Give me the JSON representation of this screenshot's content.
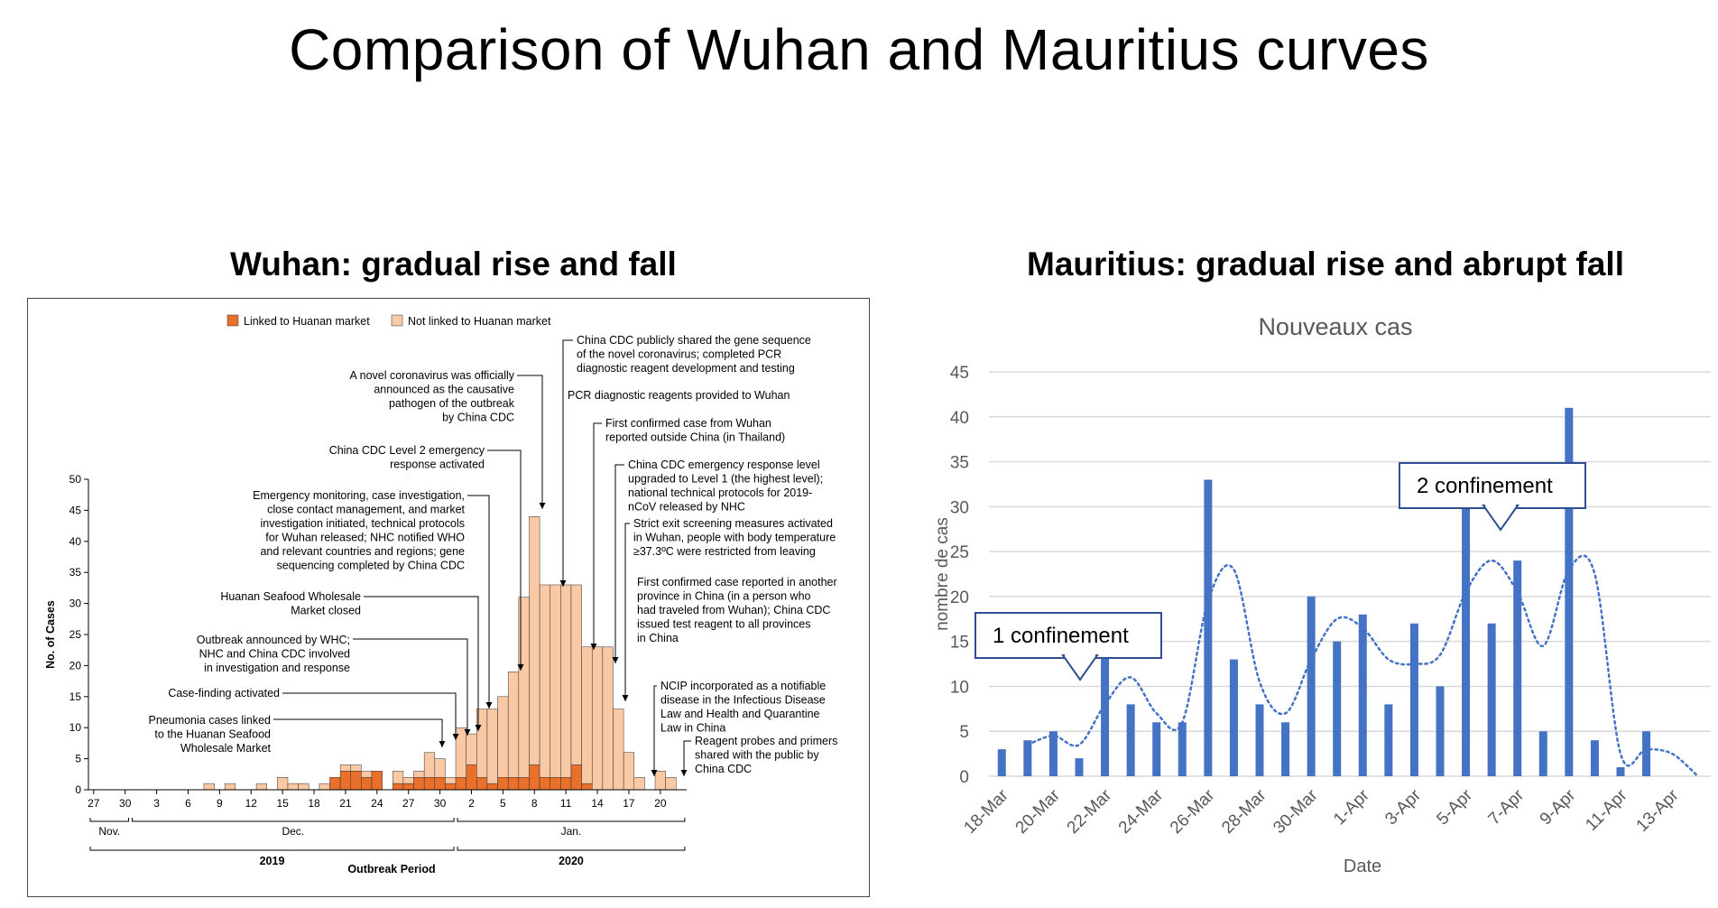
{
  "title": "Comparison of Wuhan and Mauritius curves",
  "panels": {
    "wuhan": {
      "title": "Wuhan: gradual rise and fall"
    },
    "mauritius": {
      "title": "Mauritius: gradual rise and abrupt fall"
    }
  },
  "colors": {
    "linked": "#e8702a",
    "not_linked": "#f9c8a5",
    "mauritius_bar": "#4472c4",
    "grid": "#d9d9d9",
    "callout_border": "#2f4f8f"
  },
  "chart_data": [
    {
      "type": "bar",
      "stacked": true,
      "legend": [
        "Linked to Huanan market",
        "Not linked to Huanan market"
      ],
      "legend_position": "top",
      "ylabel": "No. of Cases",
      "xlabel": "Outbreak Period",
      "ylim": [
        0,
        50
      ],
      "yticks": [
        0,
        5,
        10,
        15,
        20,
        25,
        30,
        35,
        40,
        45,
        50
      ],
      "xtick_labels": [
        "27",
        "30",
        "3",
        "6",
        "9",
        "12",
        "15",
        "18",
        "21",
        "24",
        "27",
        "30",
        "2",
        "5",
        "8",
        "11",
        "14",
        "17",
        "20"
      ],
      "month_labels": [
        "Nov.",
        "Dec.",
        "Jan."
      ],
      "year_labels": [
        "2019",
        "2020"
      ],
      "categories": [
        "Nov 27",
        "Nov 28",
        "Nov 29",
        "Nov 30",
        "Dec 1",
        "Dec 2",
        "Dec 3",
        "Dec 4",
        "Dec 5",
        "Dec 6",
        "Dec 7",
        "Dec 8",
        "Dec 9",
        "Dec 10",
        "Dec 11",
        "Dec 12",
        "Dec 13",
        "Dec 14",
        "Dec 15",
        "Dec 16",
        "Dec 17",
        "Dec 18",
        "Dec 19",
        "Dec 20",
        "Dec 21",
        "Dec 22",
        "Dec 23",
        "Dec 24",
        "Dec 25",
        "Dec 26",
        "Dec 27",
        "Dec 28",
        "Dec 29",
        "Dec 30",
        "Dec 31",
        "Jan 1",
        "Jan 2",
        "Jan 3",
        "Jan 4",
        "Jan 5",
        "Jan 6",
        "Jan 7",
        "Jan 8",
        "Jan 9",
        "Jan 10",
        "Jan 11",
        "Jan 12",
        "Jan 13",
        "Jan 14",
        "Jan 15",
        "Jan 16",
        "Jan 17",
        "Jan 18",
        "Jan 19",
        "Jan 20",
        "Jan 21",
        "Jan 22"
      ],
      "series": [
        {
          "name": "Linked to Huanan market",
          "values": [
            0,
            0,
            0,
            0,
            0,
            0,
            0,
            0,
            0,
            0,
            0,
            0,
            0,
            0,
            0,
            0,
            0,
            0,
            0,
            0,
            0,
            0,
            0,
            2,
            3,
            3,
            2,
            3,
            0,
            1,
            1,
            2,
            2,
            2,
            1,
            2,
            4,
            2,
            1,
            2,
            2,
            2,
            4,
            2,
            2,
            2,
            4,
            1,
            0,
            0,
            0,
            0,
            0,
            0,
            0,
            0,
            0
          ]
        },
        {
          "name": "Not linked to Huanan market",
          "values": [
            0,
            0,
            0,
            0,
            0,
            0,
            0,
            0,
            0,
            0,
            0,
            1,
            0,
            1,
            0,
            0,
            1,
            0,
            2,
            1,
            1,
            0,
            1,
            0,
            1,
            1,
            1,
            0,
            0,
            2,
            1,
            1,
            4,
            3,
            1,
            8,
            5,
            11,
            12,
            13,
            17,
            29,
            40,
            31,
            31,
            31,
            29,
            22,
            23,
            23,
            13,
            6,
            2,
            0,
            3,
            2,
            0
          ]
        }
      ],
      "annotations": [
        "Pneumonia cases linked to the Huanan Seafood Wholesale Market",
        "Case-finding activated",
        "Outbreak announced by WHC; NHC and China CDC involved in investigation and response",
        "Huanan Seafood Wholesale Market closed",
        "Emergency monitoring, case investigation, close contact management, and market investigation initiated, technical protocols for Wuhan released; NHC notified WHO and relevant countries and regions; gene sequencing completed by China CDC",
        "China CDC Level 2 emergency response activated",
        "A novel coronavirus was officially announced as the causative pathogen of the outbreak by China CDC",
        "China CDC publicly shared the gene sequence of the novel coronavirus; completed PCR diagnostic reagent development and testing",
        "PCR diagnostic reagents provided to Wuhan",
        "First confirmed case from Wuhan reported outside China (in Thailand)",
        "China CDC emergency response level upgraded to Level 1 (the highest level); national technical protocols for 2019-nCoV released by NHC",
        "Strict exit screening measures activated in Wuhan, people with body temperature ≥37.3ºC were restricted from leaving",
        "First confirmed case reported in another province in China (in a person who had traveled from Wuhan); China CDC issued test reagent to all provinces in China",
        "NCIP incorporated as a notifiable disease in the Infectious Disease Law and Health and Quarantine Law in China",
        "Reagent probes and primers shared with the public by China CDC"
      ]
    },
    {
      "type": "bar",
      "title": "Nouveaux cas",
      "xlabel": "Date",
      "ylabel": "nombre de cas",
      "ylim": [
        0,
        45
      ],
      "yticks": [
        0,
        5,
        10,
        15,
        20,
        25,
        30,
        35,
        40,
        45
      ],
      "grid": true,
      "trendline": "dotted moving average",
      "x": [
        "18-Mar",
        "19-Mar",
        "20-Mar",
        "21-Mar",
        "22-Mar",
        "23-Mar",
        "24-Mar",
        "25-Mar",
        "26-Mar",
        "27-Mar",
        "28-Mar",
        "29-Mar",
        "30-Mar",
        "31-Mar",
        "1-Apr",
        "2-Apr",
        "3-Apr",
        "4-Apr",
        "5-Apr",
        "6-Apr",
        "7-Apr",
        "8-Apr",
        "9-Apr",
        "10-Apr",
        "11-Apr",
        "12-Apr",
        "13-Apr",
        "14-Apr"
      ],
      "xtick_labels": [
        "18-Mar",
        "20-Mar",
        "22-Mar",
        "24-Mar",
        "26-Mar",
        "28-Mar",
        "30-Mar",
        "1-Apr",
        "3-Apr",
        "5-Apr",
        "7-Apr",
        "9-Apr",
        "11-Apr",
        "13-Apr"
      ],
      "values": [
        3,
        4,
        5,
        2,
        14,
        8,
        6,
        6,
        33,
        13,
        8,
        6,
        20,
        15,
        18,
        8,
        17,
        10,
        31,
        17,
        24,
        5,
        41,
        4,
        1,
        5,
        0,
        0
      ],
      "annotations": [
        "1 confinement",
        "2 confinement"
      ]
    }
  ]
}
